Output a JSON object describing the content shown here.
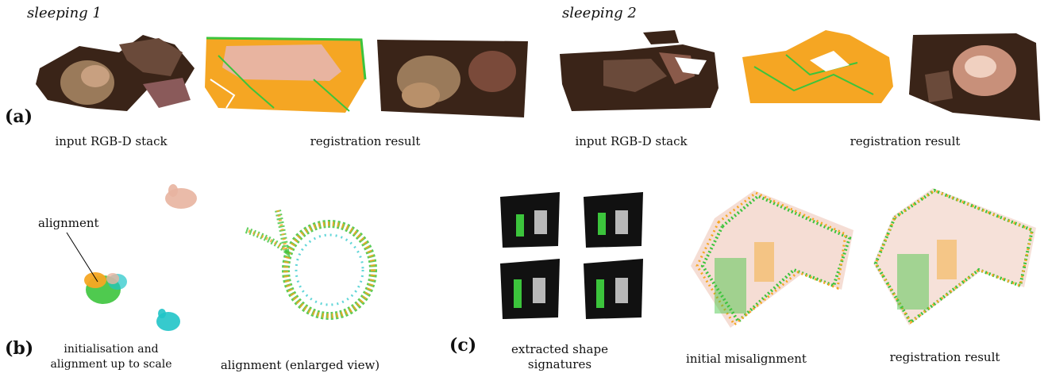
{
  "figure": {
    "titles": {
      "sleeping1": "sleeping 1",
      "sleeping2": "sleeping 2"
    },
    "panel_labels": {
      "a": "(a)",
      "b": "(b)",
      "c": "(c)"
    },
    "captions": {
      "a_input_left": "input RGB-D stack",
      "a_registration_left": "registration result",
      "a_input_right": "input RGB-D stack",
      "a_registration_right": "registration result",
      "b_init_line1": "initialisation and",
      "b_init_line2": "alignment up to scale",
      "b_enlarged": "alignment (enlarged view)",
      "b_alignment_label": "alignment",
      "c_signatures_line1": "extracted shape",
      "c_signatures_line2": "signatures",
      "c_misalignment": "initial misalignment",
      "c_registration": "registration result"
    },
    "colors": {
      "orange": "#f5a623",
      "green": "#3cc43c",
      "salmon": "#e8b4a0",
      "cyan": "#20c4c8",
      "dark": "#3a2418"
    }
  }
}
